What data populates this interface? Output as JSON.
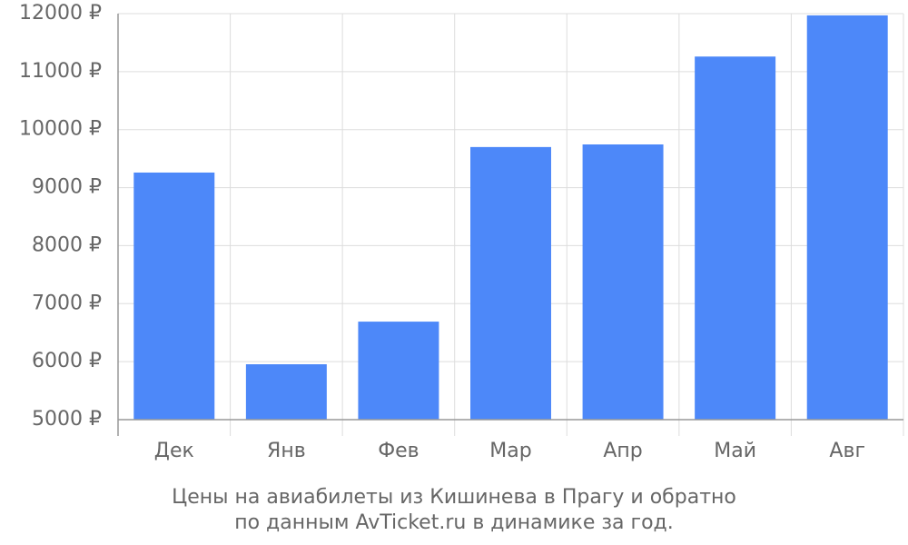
{
  "chart_data": {
    "type": "bar",
    "caption": [
      "Цены на авиабилеты из Кишинева в Прагу и обратно",
      "по данным AvTicket.ru в динамике за год."
    ],
    "categories": [
      "Дек",
      "Янв",
      "Фев",
      "Мар",
      "Апр",
      "Май",
      "Авг"
    ],
    "values": [
      9260,
      5955,
      6690,
      9700,
      9745,
      11260,
      11970
    ],
    "color": "#4d88f9",
    "ylim": [
      5000,
      12000
    ],
    "yticks": [
      {
        "value": 5000,
        "label": "5000 ₽"
      },
      {
        "value": 6000,
        "label": "6000 ₽"
      },
      {
        "value": 7000,
        "label": "7000 ₽"
      },
      {
        "value": 8000,
        "label": "8000 ₽"
      },
      {
        "value": 9000,
        "label": "9000 ₽"
      },
      {
        "value": 10000,
        "label": "10000 ₽"
      },
      {
        "value": 11000,
        "label": "11000 ₽"
      },
      {
        "value": 12000,
        "label": "12000 ₽"
      }
    ],
    "grid": true
  }
}
